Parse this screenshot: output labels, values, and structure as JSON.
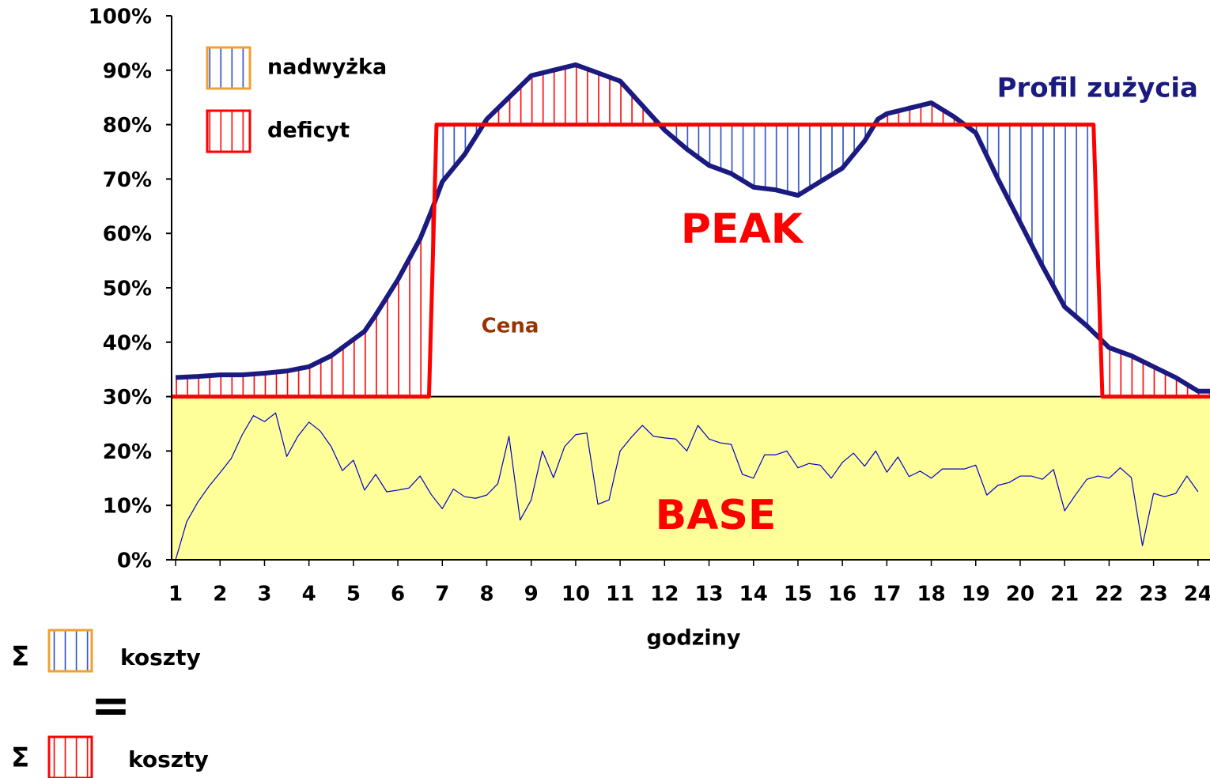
{
  "chart_data": {
    "type": "line",
    "xlabel": "godziny",
    "xlim": [
      0.91,
      24.27
    ],
    "xticks": [
      1,
      2,
      3,
      4,
      5,
      6,
      7,
      8,
      9,
      10,
      11,
      12,
      13,
      14,
      15,
      16,
      17,
      18,
      19,
      20,
      21,
      22,
      23,
      24
    ],
    "ylim": [
      0,
      100
    ],
    "yticks": [
      {
        "value": 0,
        "label": "0%"
      },
      {
        "value": 10,
        "label": "10%"
      },
      {
        "value": 20,
        "label": "20%"
      },
      {
        "value": 30,
        "label": "30%"
      },
      {
        "value": 40,
        "label": "40%"
      },
      {
        "value": 50,
        "label": "50%"
      },
      {
        "value": 60,
        "label": "60%"
      },
      {
        "value": 70,
        "label": "70%"
      },
      {
        "value": 80,
        "label": "80%"
      },
      {
        "value": 90,
        "label": "90%"
      },
      {
        "value": 100,
        "label": "100%"
      }
    ],
    "base_color": "#ffff99",
    "series": [
      {
        "name": "Profil zużycia",
        "color": "#1a1a80",
        "x": [
          1,
          1.5,
          2,
          2.5,
          3,
          3.5,
          4,
          4.5,
          5,
          5.25,
          5.5,
          6,
          6.5,
          6.75,
          7,
          7.25,
          7.5,
          8,
          8.5,
          9,
          9.5,
          10,
          10.5,
          11,
          11.5,
          12,
          12.5,
          13,
          13.5,
          14,
          14.5,
          15,
          15.5,
          16,
          16.5,
          16.8,
          17,
          17.5,
          18,
          18.5,
          19,
          19.5,
          20,
          20.5,
          21,
          21.5,
          22,
          22.5,
          23,
          23.5,
          24,
          24.27
        ],
        "values": [
          33.5,
          33.7,
          34,
          34,
          34.3,
          34.7,
          35.5,
          37.5,
          40.5,
          42,
          45,
          51.5,
          59,
          64,
          69.5,
          72,
          74.5,
          81,
          85,
          89,
          90,
          91,
          89.5,
          88,
          83.5,
          79,
          75.5,
          72.5,
          71,
          68.5,
          68,
          67,
          69.5,
          72,
          77,
          81,
          82,
          83,
          84,
          81.5,
          78.5,
          70,
          62,
          54,
          46.5,
          43,
          39,
          37.5,
          35.5,
          33.5,
          31,
          31
        ]
      },
      {
        "color": "#ff0000",
        "x": [
          0.91,
          6.7,
          6.87,
          21.65,
          21.85,
          24.27
        ],
        "values": [
          30,
          30,
          80,
          80,
          30,
          30
        ]
      },
      {
        "name": "Cena",
        "color": "#0000cc",
        "label_color": "#993300",
        "x": [
          1,
          1.25,
          1.5,
          1.75,
          2,
          2.25,
          2.5,
          2.75,
          3,
          3.25,
          3.5,
          3.75,
          4,
          4.25,
          4.5,
          4.75,
          5,
          5.25,
          5.5,
          5.75,
          6,
          6.25,
          6.5,
          6.75,
          7,
          7.25,
          7.5,
          7.75,
          8,
          8.25,
          8.5,
          8.75,
          9,
          9.25,
          9.5,
          9.75,
          10,
          10.25,
          10.5,
          10.75,
          11,
          11.25,
          11.5,
          11.75,
          12,
          12.25,
          12.5,
          12.75,
          13,
          13.25,
          13.5,
          13.75,
          14,
          14.25,
          14.5,
          14.75,
          15,
          15.25,
          15.5,
          15.75,
          16,
          16.25,
          16.5,
          16.75,
          17,
          17.25,
          17.5,
          17.75,
          18,
          18.25,
          18.5,
          18.75,
          19,
          19.25,
          19.5,
          19.75,
          20,
          20.25,
          20.5,
          20.75,
          21,
          21.25,
          21.5,
          21.75,
          22,
          22.25,
          22.5,
          22.75,
          23,
          23.25,
          23.5,
          23.75,
          24
        ],
        "values": [
          0,
          7,
          10.6,
          13.5,
          16,
          18.6,
          23,
          26.5,
          25.4,
          27,
          19,
          22.7,
          25.3,
          23.7,
          20.8,
          16.4,
          18.3,
          12.8,
          15.7,
          12.5,
          12.8,
          13.2,
          15.4,
          12,
          9.4,
          13,
          11.6,
          11.3,
          11.9,
          14,
          22.7,
          7.3,
          11,
          20,
          15.1,
          20.8,
          23,
          23.3,
          10.2,
          11,
          20,
          22.5,
          24.7,
          22.7,
          22.4,
          22.2,
          20,
          24.7,
          22.2,
          21.5,
          21.2,
          15.7,
          15,
          19.3,
          19.3,
          20,
          16.9,
          17.7,
          17.4,
          15,
          17.9,
          19.6,
          17.2,
          20,
          16.1,
          18.9,
          15.3,
          16.3,
          15,
          16.7,
          16.7,
          16.7,
          17.4,
          11.9,
          13.7,
          14.2,
          15.4,
          15.4,
          14.8,
          16.6,
          9,
          12,
          14.8,
          15.4,
          15,
          16.9,
          15.1,
          2.6,
          12.2,
          11.6,
          12.2,
          15.4,
          12.5
        ]
      }
    ],
    "areas": [
      {
        "name": "nadwyżka",
        "color": "#2a4dc4",
        "border": "#f0a030"
      },
      {
        "name": "deficyt",
        "color": "#ff0000",
        "border": "#ff0000"
      }
    ],
    "annotations": [
      {
        "text": "PEAK",
        "color": "#ff0000"
      },
      {
        "text": "BASE",
        "color": "#ff0000"
      }
    ]
  },
  "equation": {
    "top": {
      "symbol": "Σ",
      "label": "koszty"
    },
    "operator": "=",
    "bottom": {
      "symbol": "Σ",
      "label": "koszty"
    }
  }
}
